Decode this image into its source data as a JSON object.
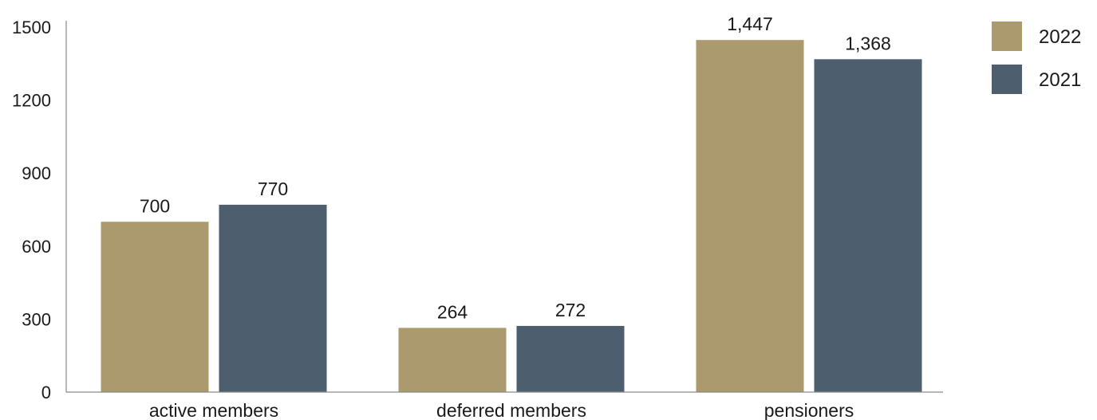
{
  "chart_data": {
    "type": "bar",
    "categories": [
      "active members",
      "deferred members",
      "pensioners"
    ],
    "series": [
      {
        "name": "2022",
        "values": [
          700,
          264,
          1447
        ],
        "labels": [
          "700",
          "264",
          "1,447"
        ],
        "color": "#ab9a6e"
      },
      {
        "name": "2021",
        "values": [
          770,
          272,
          1368
        ],
        "labels": [
          "770",
          "272",
          "1,368"
        ],
        "color": "#4d5e6e"
      }
    ],
    "y_ticks": [
      "0",
      "300",
      "600",
      "900",
      "1200",
      "1500"
    ],
    "ylim": [
      0,
      1500
    ],
    "grid": false,
    "legend_position": "top-right"
  }
}
